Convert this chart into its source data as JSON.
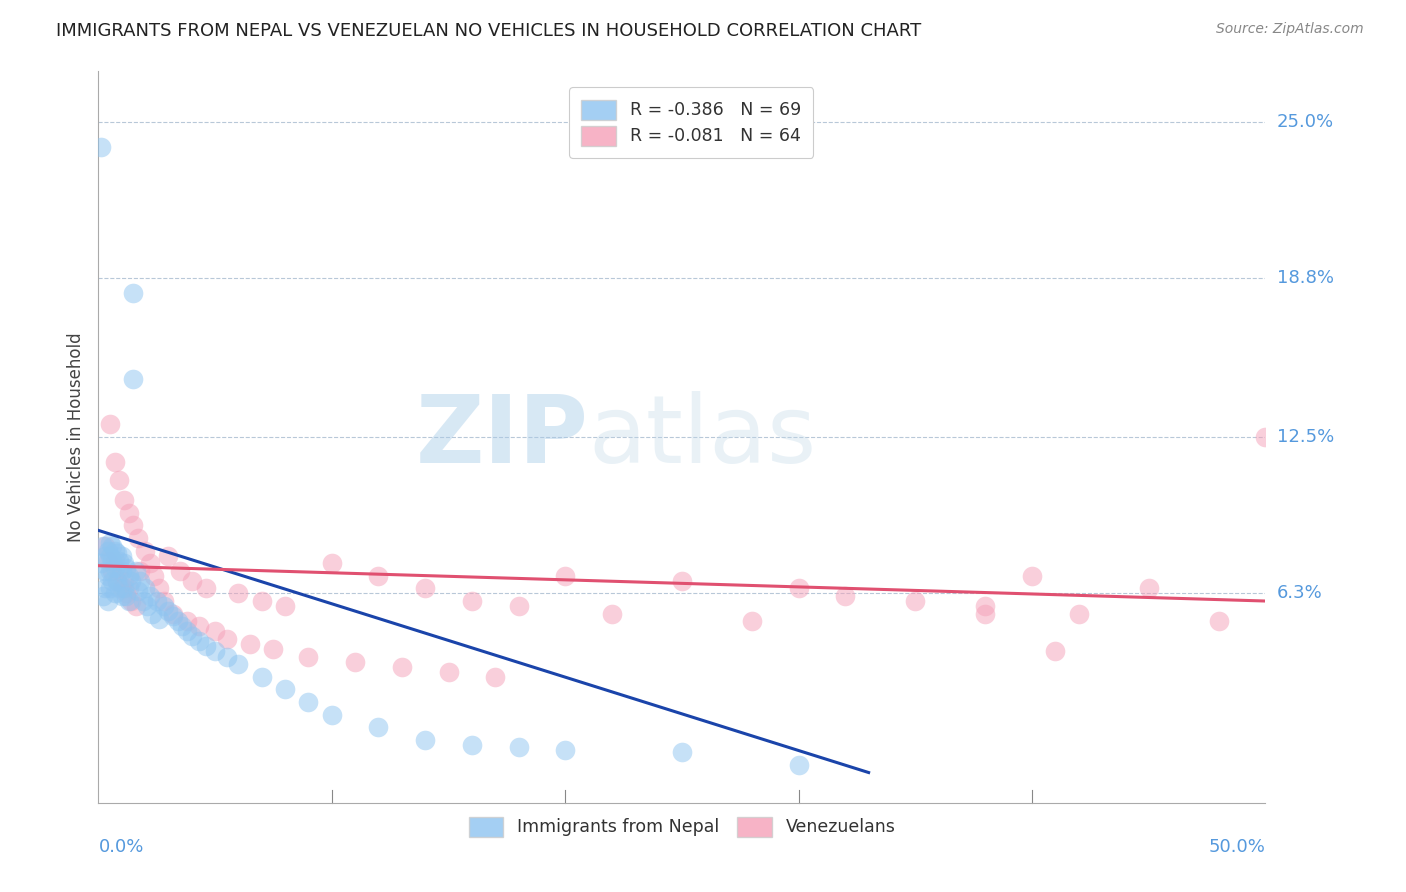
{
  "title": "IMMIGRANTS FROM NEPAL VS VENEZUELAN NO VEHICLES IN HOUSEHOLD CORRELATION CHART",
  "source": "Source: ZipAtlas.com",
  "ylabel": "No Vehicles in Household",
  "y_tick_labels": [
    "25.0%",
    "18.8%",
    "12.5%",
    "6.3%"
  ],
  "y_tick_values": [
    0.25,
    0.188,
    0.125,
    0.063
  ],
  "xlim": [
    0.0,
    0.5
  ],
  "ylim": [
    -0.02,
    0.27
  ],
  "nepal_color": "#8ec4f0",
  "venezuela_color": "#f5a0b8",
  "nepal_line_color": "#1a44aa",
  "venezuela_line_color": "#e05070",
  "watermark_zip": "ZIP",
  "watermark_atlas": "atlas",
  "nepal_R": "-0.386",
  "nepal_N": "69",
  "venezuela_R": "-0.081",
  "venezuela_N": "64",
  "nepal_scatter_x": [
    0.001,
    0.001,
    0.002,
    0.002,
    0.003,
    0.003,
    0.003,
    0.004,
    0.004,
    0.004,
    0.005,
    0.005,
    0.005,
    0.005,
    0.006,
    0.006,
    0.006,
    0.007,
    0.007,
    0.007,
    0.008,
    0.008,
    0.009,
    0.009,
    0.01,
    0.01,
    0.01,
    0.011,
    0.011,
    0.012,
    0.012,
    0.013,
    0.013,
    0.014,
    0.015,
    0.015,
    0.016,
    0.017,
    0.018,
    0.019,
    0.02,
    0.021,
    0.022,
    0.023,
    0.025,
    0.026,
    0.028,
    0.03,
    0.032,
    0.034,
    0.036,
    0.038,
    0.04,
    0.043,
    0.046,
    0.05,
    0.055,
    0.06,
    0.07,
    0.08,
    0.09,
    0.1,
    0.12,
    0.14,
    0.16,
    0.18,
    0.2,
    0.25,
    0.3
  ],
  "nepal_scatter_y": [
    0.24,
    0.075,
    0.082,
    0.062,
    0.078,
    0.072,
    0.065,
    0.08,
    0.07,
    0.06,
    0.083,
    0.078,
    0.072,
    0.065,
    0.082,
    0.076,
    0.068,
    0.08,
    0.073,
    0.063,
    0.079,
    0.068,
    0.076,
    0.065,
    0.078,
    0.072,
    0.062,
    0.075,
    0.065,
    0.073,
    0.062,
    0.07,
    0.06,
    0.068,
    0.182,
    0.148,
    0.072,
    0.064,
    0.068,
    0.06,
    0.065,
    0.058,
    0.062,
    0.055,
    0.06,
    0.053,
    0.058,
    0.056,
    0.054,
    0.052,
    0.05,
    0.048,
    0.046,
    0.044,
    0.042,
    0.04,
    0.038,
    0.035,
    0.03,
    0.025,
    0.02,
    0.015,
    0.01,
    0.005,
    0.003,
    0.002,
    0.001,
    0.0,
    -0.005
  ],
  "venezuela_scatter_x": [
    0.003,
    0.004,
    0.005,
    0.006,
    0.007,
    0.008,
    0.009,
    0.01,
    0.011,
    0.012,
    0.013,
    0.014,
    0.015,
    0.016,
    0.017,
    0.018,
    0.02,
    0.022,
    0.024,
    0.026,
    0.028,
    0.03,
    0.032,
    0.035,
    0.038,
    0.04,
    0.043,
    0.046,
    0.05,
    0.055,
    0.06,
    0.065,
    0.07,
    0.075,
    0.08,
    0.09,
    0.1,
    0.11,
    0.12,
    0.13,
    0.14,
    0.15,
    0.16,
    0.17,
    0.18,
    0.2,
    0.22,
    0.25,
    0.28,
    0.3,
    0.32,
    0.35,
    0.38,
    0.4,
    0.42,
    0.45,
    0.48,
    0.5,
    0.007,
    0.009,
    0.011,
    0.013,
    0.38,
    0.41
  ],
  "venezuela_scatter_y": [
    0.082,
    0.076,
    0.13,
    0.072,
    0.115,
    0.068,
    0.108,
    0.065,
    0.1,
    0.063,
    0.095,
    0.06,
    0.09,
    0.058,
    0.085,
    0.072,
    0.08,
    0.075,
    0.07,
    0.065,
    0.06,
    0.078,
    0.055,
    0.072,
    0.052,
    0.068,
    0.05,
    0.065,
    0.048,
    0.045,
    0.063,
    0.043,
    0.06,
    0.041,
    0.058,
    0.038,
    0.075,
    0.036,
    0.07,
    0.034,
    0.065,
    0.032,
    0.06,
    0.03,
    0.058,
    0.07,
    0.055,
    0.068,
    0.052,
    0.065,
    0.062,
    0.06,
    0.058,
    0.07,
    0.055,
    0.065,
    0.052,
    0.125,
    0.076,
    0.072,
    0.068,
    0.065,
    0.055,
    0.04
  ],
  "nepal_line_x": [
    0.0,
    0.33
  ],
  "nepal_line_y": [
    0.088,
    -0.008
  ],
  "venezuela_line_x": [
    0.0,
    0.5
  ],
  "venezuela_line_y": [
    0.074,
    0.06
  ]
}
